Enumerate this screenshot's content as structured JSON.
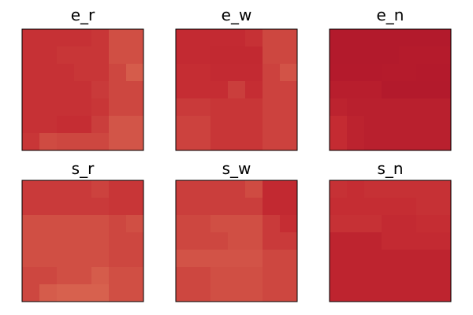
{
  "chart_data": {
    "type": "heatmap",
    "grid": false,
    "colormap": "RdBu_r (red side)",
    "color_stops": [
      "#f4a582",
      "#e8705a",
      "#d6604d",
      "#c42b32",
      "#b2182b"
    ],
    "panels": [
      {
        "title": "e_r",
        "values": [
          [
            0.72,
            0.72,
            0.72,
            0.72,
            0.7,
            0.58,
            0.58
          ],
          [
            0.72,
            0.72,
            0.7,
            0.7,
            0.7,
            0.58,
            0.58
          ],
          [
            0.72,
            0.72,
            0.72,
            0.7,
            0.7,
            0.62,
            0.52
          ],
          [
            0.72,
            0.72,
            0.72,
            0.72,
            0.68,
            0.62,
            0.62
          ],
          [
            0.72,
            0.72,
            0.72,
            0.72,
            0.7,
            0.62,
            0.62
          ],
          [
            0.72,
            0.72,
            0.74,
            0.74,
            0.66,
            0.55,
            0.55
          ],
          [
            0.7,
            0.6,
            0.62,
            0.62,
            0.62,
            0.55,
            0.55
          ]
        ]
      },
      {
        "title": "e_w",
        "values": [
          [
            0.76,
            0.76,
            0.76,
            0.76,
            0.72,
            0.62,
            0.62
          ],
          [
            0.76,
            0.76,
            0.78,
            0.78,
            0.78,
            0.62,
            0.62
          ],
          [
            0.74,
            0.74,
            0.76,
            0.76,
            0.76,
            0.64,
            0.56
          ],
          [
            0.74,
            0.74,
            0.74,
            0.66,
            0.74,
            0.64,
            0.64
          ],
          [
            0.68,
            0.68,
            0.7,
            0.7,
            0.7,
            0.64,
            0.64
          ],
          [
            0.64,
            0.64,
            0.7,
            0.7,
            0.7,
            0.64,
            0.64
          ],
          [
            0.64,
            0.64,
            0.7,
            0.7,
            0.7,
            0.64,
            0.64
          ]
        ]
      },
      {
        "title": "e_n",
        "values": [
          [
            0.98,
            0.98,
            0.98,
            0.98,
            0.98,
            0.98,
            0.98
          ],
          [
            0.98,
            0.98,
            0.98,
            0.98,
            0.96,
            0.96,
            0.96
          ],
          [
            0.97,
            0.97,
            0.97,
            0.96,
            0.96,
            0.97,
            0.97
          ],
          [
            0.92,
            0.92,
            0.92,
            0.98,
            0.98,
            0.98,
            0.98
          ],
          [
            0.86,
            0.9,
            0.9,
            0.9,
            0.9,
            0.9,
            0.9
          ],
          [
            0.75,
            0.86,
            0.9,
            0.9,
            0.9,
            0.9,
            0.9
          ],
          [
            0.75,
            0.86,
            0.9,
            0.9,
            0.9,
            0.9,
            0.9
          ]
        ]
      },
      {
        "title": "s_r",
        "values": [
          [
            0.68,
            0.68,
            0.68,
            0.68,
            0.64,
            0.7,
            0.7
          ],
          [
            0.68,
            0.68,
            0.68,
            0.68,
            0.68,
            0.7,
            0.7
          ],
          [
            0.58,
            0.58,
            0.58,
            0.58,
            0.58,
            0.62,
            0.58
          ],
          [
            0.58,
            0.58,
            0.58,
            0.58,
            0.58,
            0.62,
            0.62
          ],
          [
            0.58,
            0.58,
            0.58,
            0.58,
            0.58,
            0.62,
            0.62
          ],
          [
            0.62,
            0.62,
            0.58,
            0.58,
            0.52,
            0.58,
            0.58
          ],
          [
            0.62,
            0.52,
            0.48,
            0.48,
            0.48,
            0.58,
            0.58
          ]
        ]
      },
      {
        "title": "s_w",
        "values": [
          [
            0.66,
            0.66,
            0.66,
            0.66,
            0.6,
            0.78,
            0.78
          ],
          [
            0.66,
            0.66,
            0.66,
            0.66,
            0.66,
            0.78,
            0.78
          ],
          [
            0.62,
            0.62,
            0.58,
            0.58,
            0.58,
            0.68,
            0.74
          ],
          [
            0.62,
            0.62,
            0.62,
            0.58,
            0.58,
            0.68,
            0.68
          ],
          [
            0.56,
            0.56,
            0.56,
            0.56,
            0.56,
            0.62,
            0.62
          ],
          [
            0.62,
            0.62,
            0.58,
            0.58,
            0.58,
            0.62,
            0.62
          ],
          [
            0.62,
            0.62,
            0.58,
            0.58,
            0.58,
            0.62,
            0.62
          ]
        ]
      },
      {
        "title": "s_n",
        "values": [
          [
            0.72,
            0.74,
            0.72,
            0.72,
            0.72,
            0.72,
            0.72
          ],
          [
            0.74,
            0.74,
            0.74,
            0.74,
            0.74,
            0.72,
            0.72
          ],
          [
            0.72,
            0.72,
            0.72,
            0.76,
            0.76,
            0.74,
            0.74
          ],
          [
            0.84,
            0.84,
            0.84,
            0.76,
            0.76,
            0.76,
            0.76
          ],
          [
            0.84,
            0.84,
            0.84,
            0.84,
            0.84,
            0.84,
            0.84
          ],
          [
            0.84,
            0.84,
            0.84,
            0.84,
            0.84,
            0.84,
            0.84
          ],
          [
            0.84,
            0.84,
            0.84,
            0.84,
            0.84,
            0.84,
            0.84
          ]
        ]
      }
    ]
  }
}
